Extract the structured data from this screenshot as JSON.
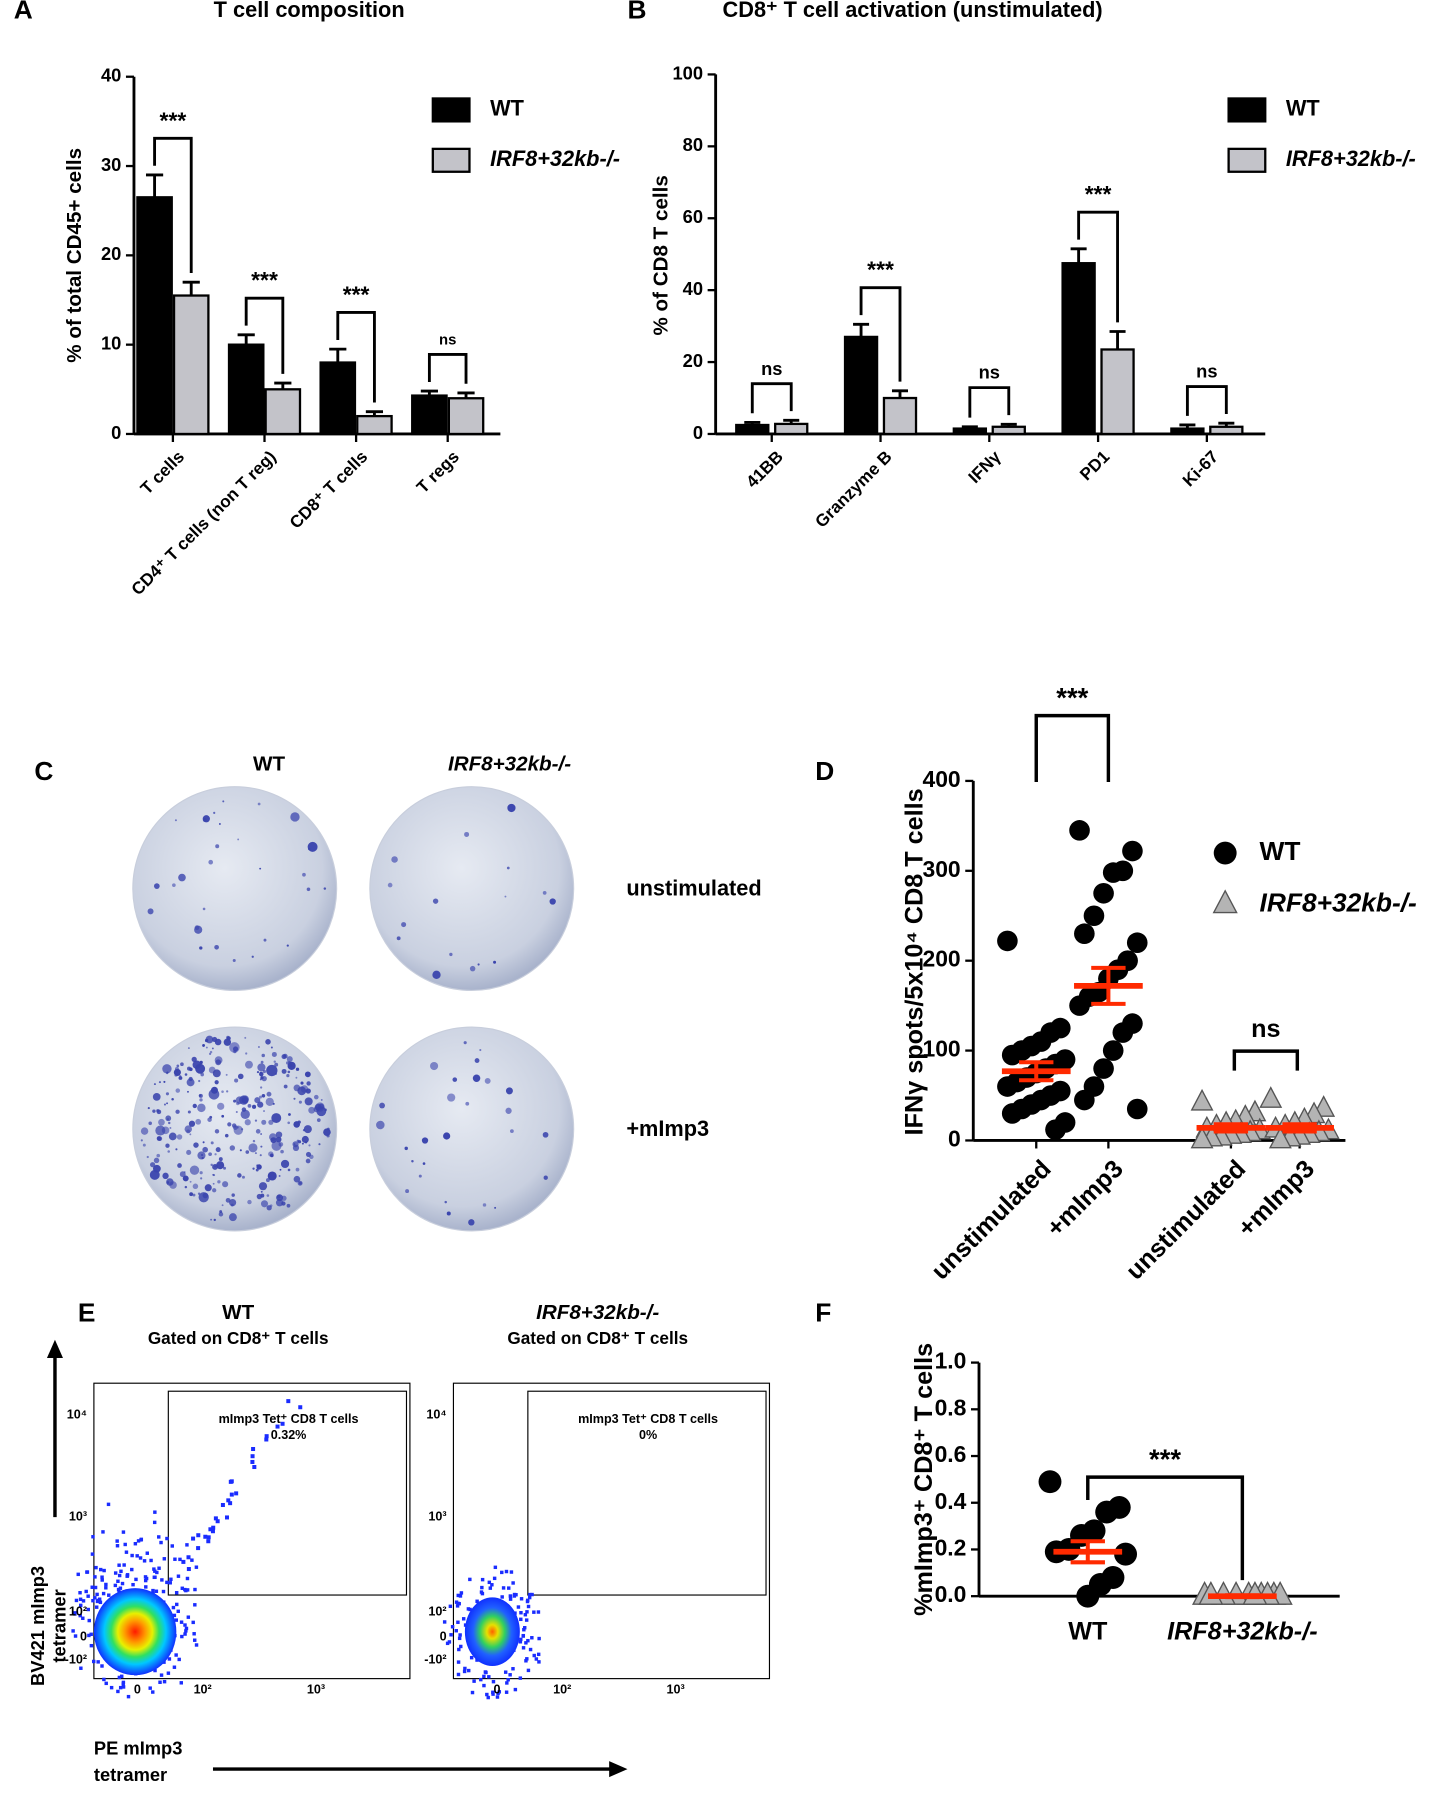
{
  "chart_data": [
    {
      "panel": "A",
      "type": "bar",
      "title": "T cell composition",
      "y_label": "% of total CD45+ cells",
      "categories": [
        "T cells",
        "CD4⁺ T cells (non T reg)",
        "CD8⁺ T cells",
        "T regs"
      ],
      "series": [
        {
          "name": "WT",
          "color": "#000000",
          "values": [
            26.5,
            10,
            8,
            4.3
          ],
          "errors": [
            2.5,
            1.1,
            1.5,
            0.5
          ]
        },
        {
          "name": "IRF8+32kb-/-",
          "color": "#c3c3c9",
          "values": [
            15.5,
            5,
            2,
            4
          ],
          "errors": [
            1.5,
            0.7,
            0.5,
            0.6
          ]
        }
      ],
      "ylim": [
        0,
        40
      ],
      "yticks": [
        0,
        10,
        20,
        30,
        40
      ],
      "significance": [
        "***",
        "***",
        "***",
        "ns"
      ]
    },
    {
      "panel": "B",
      "type": "bar",
      "title": "CD8⁺ T cell activation (unstimulated)",
      "y_label": "% of CD8 T cells",
      "categories": [
        "41BB",
        "Granzyme B",
        "IFNγ",
        "PD1",
        "Ki-67"
      ],
      "series": [
        {
          "name": "WT",
          "color": "#000000",
          "values": [
            2.5,
            27,
            1.5,
            47.5,
            1.5
          ],
          "errors": [
            0.7,
            3.5,
            0.5,
            4,
            1
          ]
        },
        {
          "name": "IRF8+32kb-/-",
          "color": "#c3c3c9",
          "values": [
            2.8,
            10,
            2,
            23.5,
            2
          ],
          "errors": [
            1,
            2,
            0.7,
            5,
            1
          ]
        }
      ],
      "ylim": [
        0,
        100
      ],
      "yticks": [
        0,
        20,
        40,
        60,
        80,
        100
      ],
      "significance": [
        "ns",
        "***",
        "ns",
        "***",
        "ns"
      ]
    },
    {
      "panel": "D",
      "type": "strip",
      "y_label": "IFNγ spots/5x10⁴ CD8 T cells",
      "categories": [
        "unstimulated",
        "+mImp3",
        "unstimulated",
        "+mImp3"
      ],
      "series": [
        {
          "name": "WT",
          "color": "#000000",
          "marker": "circle",
          "values": [
            [
              222,
              125,
              120,
              110,
              105,
              100,
              95,
              90,
              85,
              80,
              75,
              70,
              65,
              60,
              55,
              50,
              45,
              40,
              35,
              30,
              20,
              12
            ],
            [
              345,
              322,
              300,
              298,
              275,
              250,
              230,
              220,
              200,
              190,
              180,
              165,
              160,
              150,
              130,
              120,
              100,
              80,
              60,
              45,
              35
            ],
            null,
            null
          ]
        },
        {
          "name": "IRF8+32kb-/-",
          "color": "#b4b4b4",
          "marker": "triangle",
          "values": [
            null,
            null,
            [
              42,
              30,
              25,
              20,
              18,
              15,
              12,
              10,
              8,
              6,
              5,
              3,
              2,
              0
            ],
            [
              45,
              35,
              28,
              22,
              18,
              15,
              12,
              10,
              8,
              6,
              4,
              2,
              0
            ]
          ]
        }
      ],
      "means": [
        77,
        172,
        14,
        14
      ],
      "sems": [
        10,
        20,
        4,
        4
      ],
      "mean_color": "#ff2a00",
      "ylim": [
        0,
        400
      ],
      "yticks": [
        0,
        100,
        200,
        300,
        400
      ],
      "significance": [
        "***",
        "ns"
      ]
    },
    {
      "panel": "F",
      "type": "strip",
      "y_label": "%mImp3⁺ CD8⁺ T cells",
      "categories": [
        "WT",
        "IRF8+32kb-/-"
      ],
      "series": [
        {
          "color": "#000000",
          "marker": "circle",
          "values": [
            [
              0.49,
              0.38,
              0.36,
              0.28,
              0.26,
              0.2,
              0.19,
              0.18,
              0.08,
              0.05,
              0
            ],
            null
          ]
        },
        {
          "color": "#b4b4b4",
          "marker": "triangle",
          "values": [
            null,
            [
              0,
              0,
              0,
              0,
              0,
              0,
              0,
              0,
              0,
              0
            ]
          ]
        }
      ],
      "means": [
        0.19,
        0
      ],
      "sems": [
        0.045,
        0.004
      ],
      "mean_color": "#ff2a00",
      "ylim": [
        0,
        1
      ],
      "yticks": [
        {
          "value": 0,
          "label": "0.0"
        },
        0.2,
        0.4,
        0.6,
        0.8,
        {
          "value": 1,
          "label": "1.0"
        }
      ],
      "significance": [
        "***"
      ]
    }
  ],
  "panel_c": {
    "label": "C",
    "columns": [
      "WT",
      "IRF8+32kb-/-"
    ],
    "rows": [
      "unstimulated",
      "+mImp3"
    ]
  },
  "panel_e": {
    "label": "E",
    "plots": [
      {
        "title": "WT",
        "subtitle": "Gated on CD8⁺ T cells",
        "gate_label": "mImp3 Tet⁺ CD8 T cells",
        "gate_value": "0.32%"
      },
      {
        "title": "IRF8+32kb-/-",
        "subtitle": "Gated on CD8⁺ T cells",
        "gate_label": "mImp3 Tet⁺ CD8 T cells",
        "gate_value": "0%"
      }
    ],
    "y_ticks": [
      "10⁴",
      "10³",
      "10²",
      "0",
      "-10²"
    ],
    "x_ticks": [
      "0",
      "10²",
      "10³"
    ],
    "y_axis_label": [
      "BV421 mImp3",
      "tetramer"
    ],
    "x_axis_label": [
      "PE mImp3",
      "tetramer"
    ]
  }
}
